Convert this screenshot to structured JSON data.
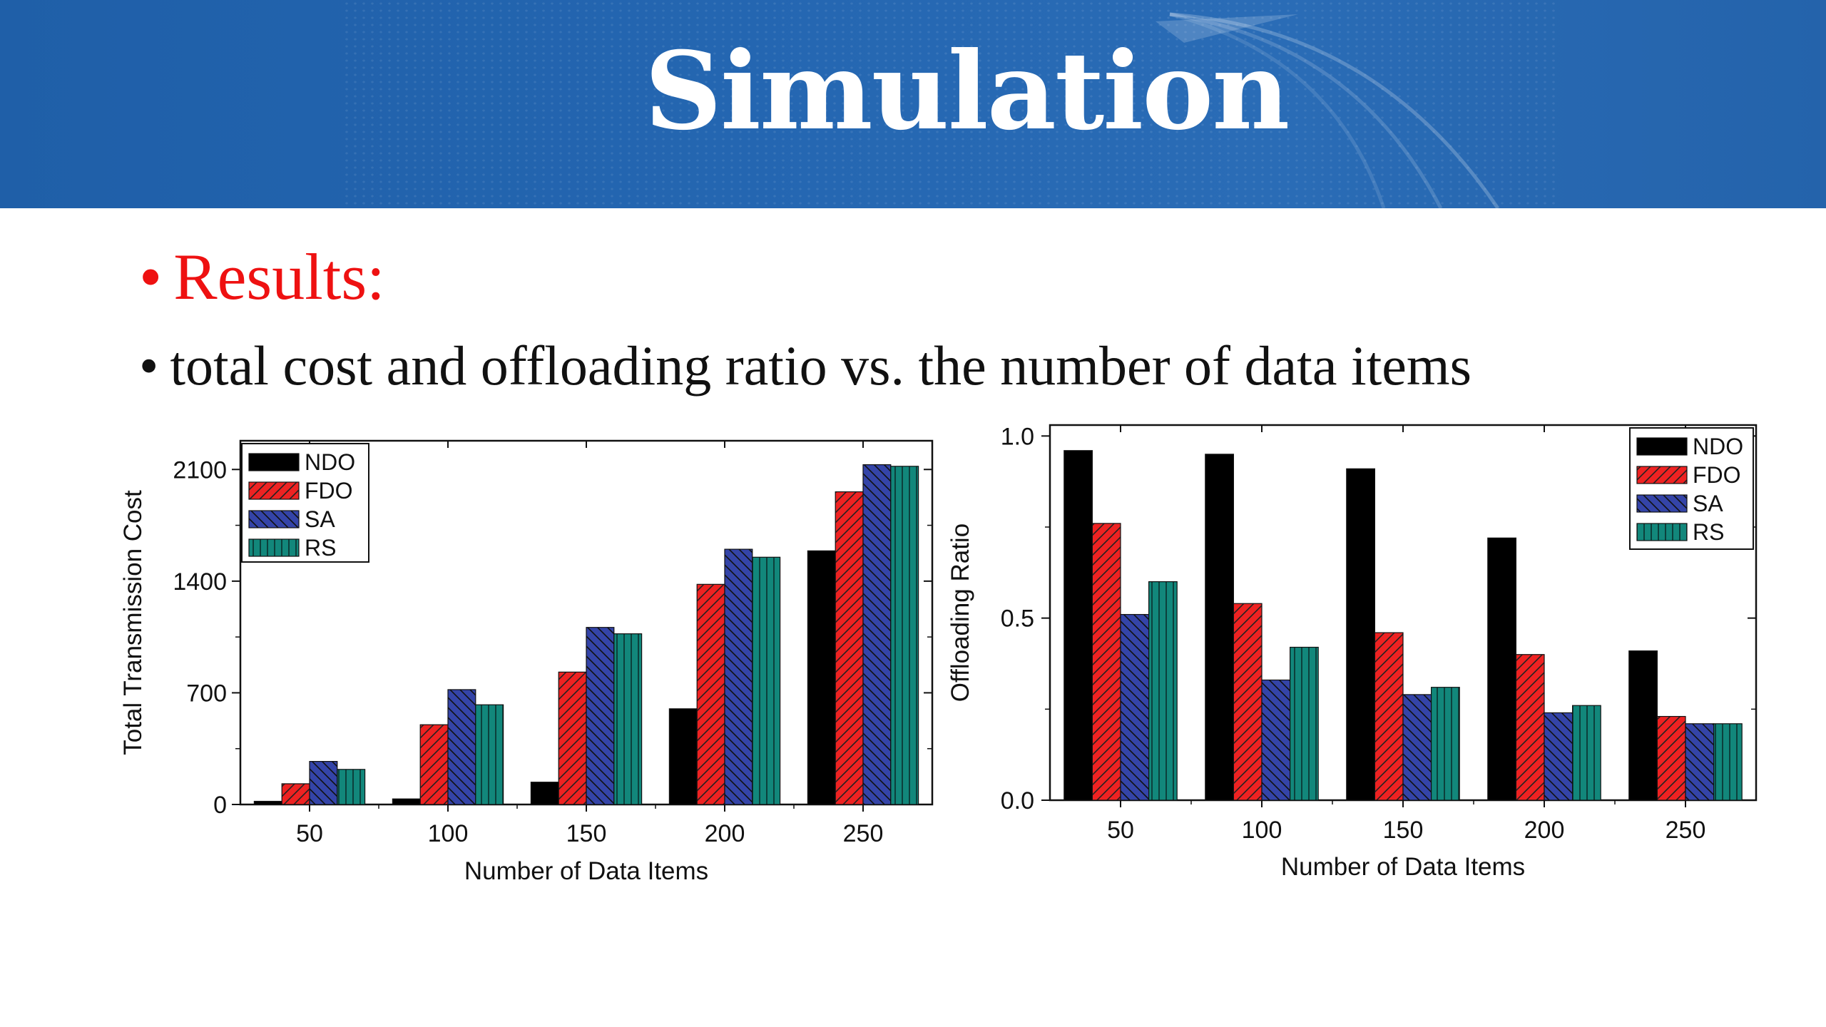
{
  "header": {
    "title": "Simulation"
  },
  "bullets": {
    "results": "Results:",
    "description": "total cost and offloading ratio vs. the number of data items"
  },
  "chart_data": [
    {
      "type": "bar",
      "categories": [
        "50",
        "100",
        "150",
        "200",
        "250"
      ],
      "series": [
        {
          "name": "NDO",
          "values": [
            20,
            35,
            140,
            600,
            1590
          ],
          "color": "#000000",
          "pattern": "solid"
        },
        {
          "name": "FDO",
          "values": [
            130,
            500,
            830,
            1380,
            1960
          ],
          "color": "#ee2222",
          "pattern": "forward-hatch"
        },
        {
          "name": "SA",
          "values": [
            270,
            720,
            1110,
            1600,
            2130
          ],
          "color": "#3040a0",
          "pattern": "back-hatch"
        },
        {
          "name": "RS",
          "values": [
            220,
            625,
            1070,
            1550,
            2120
          ],
          "color": "#10857a",
          "pattern": "vertical"
        }
      ],
      "xlabel": "Number of Data Items",
      "ylabel": "Total Transmission Cost",
      "ylim": [
        0,
        2280
      ],
      "yticks": [
        "0",
        "700",
        "1400",
        "2100"
      ],
      "legend": "top-left"
    },
    {
      "type": "bar",
      "categories": [
        "50",
        "100",
        "150",
        "200",
        "250"
      ],
      "series": [
        {
          "name": "NDO",
          "values": [
            0.96,
            0.95,
            0.91,
            0.72,
            0.41
          ],
          "color": "#000000",
          "pattern": "solid"
        },
        {
          "name": "FDO",
          "values": [
            0.76,
            0.54,
            0.46,
            0.4,
            0.23
          ],
          "color": "#ee2222",
          "pattern": "forward-hatch"
        },
        {
          "name": "SA",
          "values": [
            0.51,
            0.33,
            0.29,
            0.24,
            0.21
          ],
          "color": "#3040a0",
          "pattern": "back-hatch"
        },
        {
          "name": "RS",
          "values": [
            0.6,
            0.42,
            0.31,
            0.26,
            0.21
          ],
          "color": "#10857a",
          "pattern": "vertical"
        }
      ],
      "xlabel": "Number of Data Items",
      "ylabel": "Offloading Ratio",
      "ylim": [
        0,
        1.03
      ],
      "yticks": [
        "0.0",
        "0.5",
        "1.0"
      ],
      "legend": "top-right"
    }
  ]
}
